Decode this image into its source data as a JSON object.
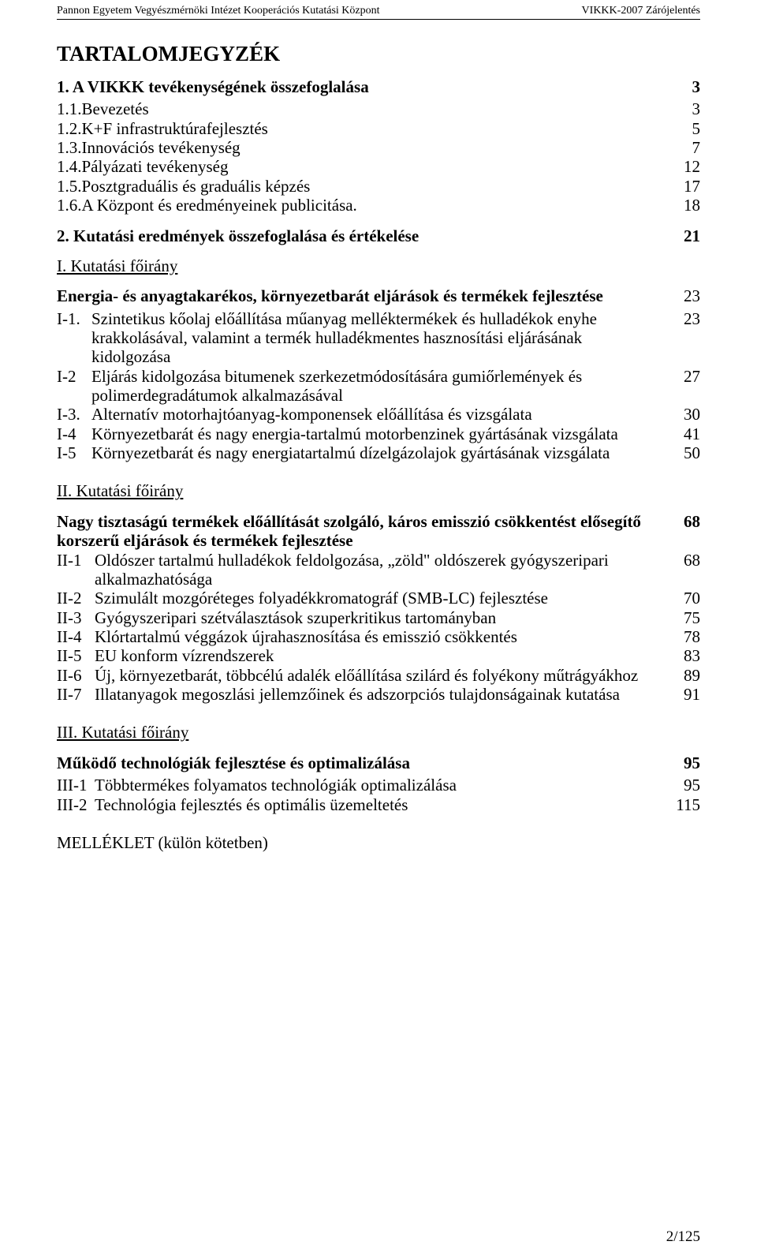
{
  "header": {
    "left": "Pannon Egyetem Vegyészmérnöki Intézet Kooperációs Kutatási Központ",
    "right": "VIKKK-2007 Zárójelentés"
  },
  "title": "TARTALOMJEGYZÉK",
  "section1": {
    "heading": "1. A VIKKK tevékenységének összefoglalása",
    "page": "3",
    "items": [
      {
        "label": "1.1.Bevezetés",
        "page": "3"
      },
      {
        "label": "1.2.K+F infrastruktúrafejlesztés",
        "page": "5"
      },
      {
        "label": "1.3.Innovációs tevékenység",
        "page": "7"
      },
      {
        "label": "1.4.Pályázati tevékenység",
        "page": "12"
      },
      {
        "label": "1.5.Posztgraduális és graduális képzés",
        "page": "17"
      },
      {
        "label": "1.6.A Központ és eredményeinek publicitása.",
        "page": "18"
      }
    ]
  },
  "section2": {
    "heading": "2.  Kutatási eredmények összefoglalása és értékelése",
    "page": "21"
  },
  "dirI": {
    "title": "I. Kutatási főirány",
    "subtitle": "Energia- és anyagtakarékos, környezetbarát eljárások és termékek fejlesztése",
    "subtitle_page": "23",
    "items": [
      {
        "prefix": "I-1.",
        "text": "Szintetikus kőolaj előállítása műanyag melléktermékek és hulladékok enyhe krakkolásával, valamint a termék hulladékmentes hasznosítási eljárásának kidolgozása",
        "page": "23"
      },
      {
        "prefix": "I-2",
        "text": "Eljárás kidolgozása bitumenek szerkezetmódosítására gumiőrlemények és polimerdegradátumok alkalmazásával",
        "page": "27"
      },
      {
        "prefix": "I-3.",
        "text": "Alternatív motorhajtóanyag-komponensek előállítása és vizsgálata",
        "page": "30"
      },
      {
        "prefix": "I-4",
        "text": "Környezetbarát és nagy energia-tartalmú motorbenzinek gyártásának vizsgálata",
        "page": "41"
      },
      {
        "prefix": "I-5",
        "text": "Környezetbarát és nagy energiatartalmú dízelgázolajok gyártásának vizsgálata",
        "page": "50"
      }
    ]
  },
  "dirII": {
    "title": "II. Kutatási főirány",
    "subtitle": "Nagy tisztaságú termékek előállítását szolgáló, káros emisszió csökkentést  elősegítő korszerű eljárások és termékek fejlesztése",
    "subtitle_page": "68",
    "items": [
      {
        "prefix": "II-1",
        "text": "Oldószer tartalmú hulladékok feldolgozása, „zöld\" oldószerek gyógyszeripari alkalmazhatósága",
        "page": "68"
      },
      {
        "prefix": "II-2",
        "text": "Szimulált mozgóréteges folyadékkromatográf (SMB-LC) fejlesztése",
        "page": "70"
      },
      {
        "prefix": "II-3",
        "text": "Gyógyszeripari szétválasztások szuperkritikus tartományban",
        "page": "75"
      },
      {
        "prefix": "II-4",
        "text": "Klórtartalmú véggázok újrahasznosítása és emisszió csökkentés",
        "page": "78"
      },
      {
        "prefix": "II-5",
        "text": "EU konform vízrendszerek",
        "page": "83"
      },
      {
        "prefix": "II-6",
        "text": "Új, környezetbarát, többcélú adalék előállítása szilárd és folyékony műtrágyákhoz",
        "page": "89"
      },
      {
        "prefix": "II-7",
        "text": "Illatanyagok megoszlási jellemzőinek és adszorpciós tulajdonságainak kutatása",
        "page": "91"
      }
    ]
  },
  "dirIII": {
    "title": "III. Kutatási főirány",
    "subtitle": "Működő technológiák fejlesztése és optimalizálása",
    "subtitle_page": "95",
    "items": [
      {
        "prefix": "III-1",
        "text": "Többtermékes folyamatos technológiák optimalizálása",
        "page": "95"
      },
      {
        "prefix": "III-2",
        "text": "Technológia fejlesztés és optimális üzemeltetés",
        "page": "115"
      }
    ]
  },
  "appendix": "MELLÉKLET (külön kötetben)",
  "footer_page": "2/125"
}
